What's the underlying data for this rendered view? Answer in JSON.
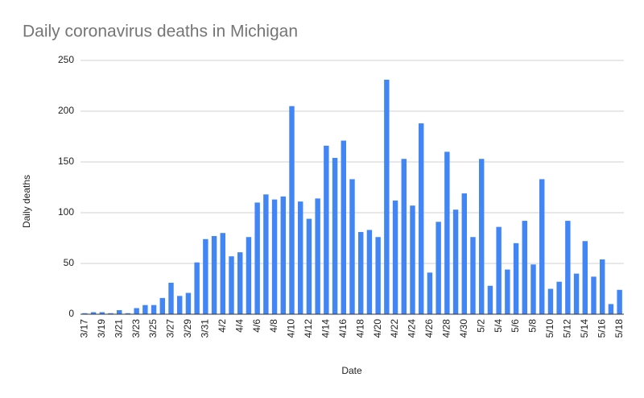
{
  "chart_data": {
    "type": "bar",
    "title": "Daily coronavirus deaths in Michigan",
    "x_label": "Date",
    "y_label": "Daily deaths",
    "categories": [
      "3/17",
      null,
      "3/19",
      null,
      "3/21",
      null,
      "3/23",
      null,
      "3/25",
      null,
      "3/27",
      null,
      "3/29",
      null,
      "3/31",
      null,
      "4/2",
      null,
      "4/4",
      null,
      "4/6",
      null,
      "4/8",
      null,
      "4/10",
      null,
      "4/12",
      null,
      "4/14",
      null,
      "4/16",
      null,
      "4/18",
      null,
      "4/20",
      null,
      "4/22",
      null,
      "4/24",
      null,
      "4/26",
      null,
      "4/28",
      null,
      "4/30",
      null,
      "5/2",
      null,
      "5/4",
      null,
      "5/6",
      null,
      "5/8",
      null,
      "5/10",
      null,
      "5/12",
      null,
      "5/14",
      null,
      "5/16",
      null,
      "5/18"
    ],
    "values": [
      1,
      2,
      2,
      1,
      4,
      1,
      6,
      9,
      9,
      16,
      31,
      18,
      21,
      51,
      74,
      77,
      80,
      57,
      61,
      76,
      110,
      118,
      113,
      116,
      205,
      111,
      94,
      114,
      166,
      154,
      171,
      133,
      81,
      83,
      76,
      231,
      112,
      153,
      107,
      188,
      41,
      91,
      160,
      103,
      119,
      76,
      153,
      28,
      86,
      44,
      70,
      92,
      49,
      133,
      25,
      32,
      92,
      40,
      72,
      37,
      54,
      10,
      24
    ],
    "color": "#4285f4",
    "ylim": [
      0,
      250
    ],
    "yticks": [
      0,
      50,
      100,
      150,
      200,
      250
    ],
    "grid": true
  }
}
